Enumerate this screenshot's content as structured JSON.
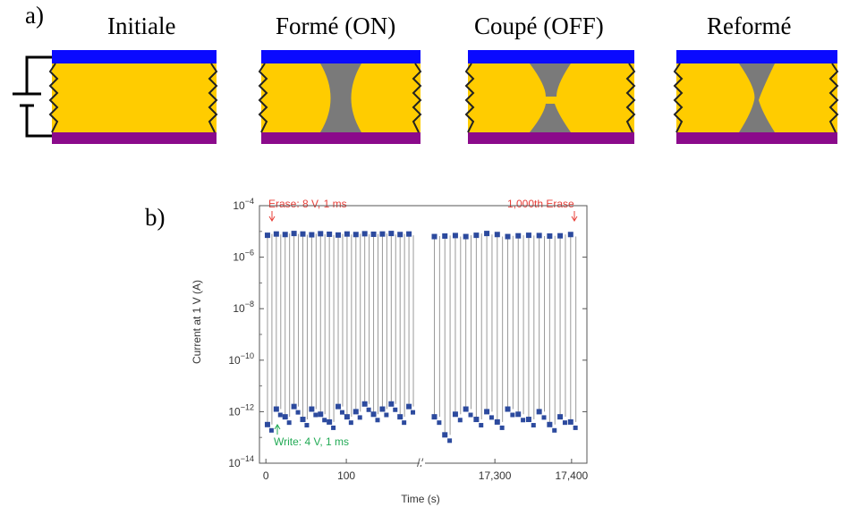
{
  "panel_a": {
    "label": "a)",
    "states": [
      {
        "title": "Initiale",
        "filament": "none"
      },
      {
        "title": "Formé (ON)",
        "filament": "full"
      },
      {
        "title": "Coupé (OFF)",
        "filament": "broken"
      },
      {
        "title": "Reformé",
        "filament": "reformed"
      }
    ],
    "colors": {
      "top_electrode": "#0a0aff",
      "bottom_electrode": "#8b0a8b",
      "oxide": "#ffcc00",
      "filament": "#7a7a7a"
    }
  },
  "panel_b": {
    "label": "b)",
    "chart_data": {
      "type": "scatter",
      "ylabel": "Current at 1 V (A)",
      "xlabel": "Time (s)",
      "y_scale": "log",
      "ylim": [
        1e-14,
        0.0001
      ],
      "y_ticks": [
        {
          "base": "10",
          "exp": "−4",
          "value": 0.0001
        },
        {
          "base": "10",
          "exp": "−6",
          "value": 1e-06
        },
        {
          "base": "10",
          "exp": "−8",
          "value": 1e-08
        },
        {
          "base": "10",
          "exp": "−10",
          "value": 1e-10
        },
        {
          "base": "10",
          "exp": "−12",
          "value": 1e-12
        },
        {
          "base": "10",
          "exp": "−14",
          "value": 1e-14
        }
      ],
      "x_segments": [
        {
          "range": [
            -8,
            190
          ],
          "ticks": [
            {
              "label": "0",
              "value": 0
            },
            {
              "label": "100",
              "value": 100
            }
          ]
        },
        {
          "range": [
            17210,
            17420
          ],
          "ticks": [
            {
              "label": "17,300",
              "value": 17300
            },
            {
              "label": "17,400",
              "value": 17400
            }
          ]
        }
      ],
      "axis_break": "//",
      "annotations": [
        {
          "text": "Erase: 8 V, 1 ms",
          "color": "#e8403a"
        },
        {
          "text": "1,000th Erase",
          "color": "#e8403a"
        },
        {
          "text": "Write: 4 V, 1 ms",
          "color": "#22aa55"
        }
      ],
      "series": [
        {
          "marker_color": "#2c4a9e",
          "high_exp": [
            -5.15,
            -5.1,
            -5.12,
            -5.08,
            -5.1,
            -5.13,
            -5.09,
            -5.11,
            -5.14,
            -5.1,
            -5.12,
            -5.09,
            -5.11,
            -5.1,
            -5.08,
            -5.12,
            -5.1
          ],
          "low_exp": [
            -12.5,
            -11.9,
            -12.2,
            -11.8,
            -12.3,
            -11.9,
            -12.1,
            -12.4,
            -11.8,
            -12.2,
            -12.0,
            -11.7,
            -12.1,
            -11.9,
            -11.7,
            -12.2,
            -11.8
          ],
          "high_exp_b": [
            -5.2,
            -5.18,
            -5.16,
            -5.2,
            -5.15,
            -5.08,
            -5.12,
            -5.2,
            -5.17,
            -5.15,
            -5.16,
            -5.18,
            -5.17,
            -5.12
          ],
          "low_exp_b": [
            -12.2,
            -12.9,
            -12.1,
            -11.9,
            -12.3,
            -12.0,
            -12.4,
            -11.9,
            -12.1,
            -12.3,
            -12.0,
            -12.5,
            -12.2,
            -12.4
          ]
        }
      ]
    }
  }
}
